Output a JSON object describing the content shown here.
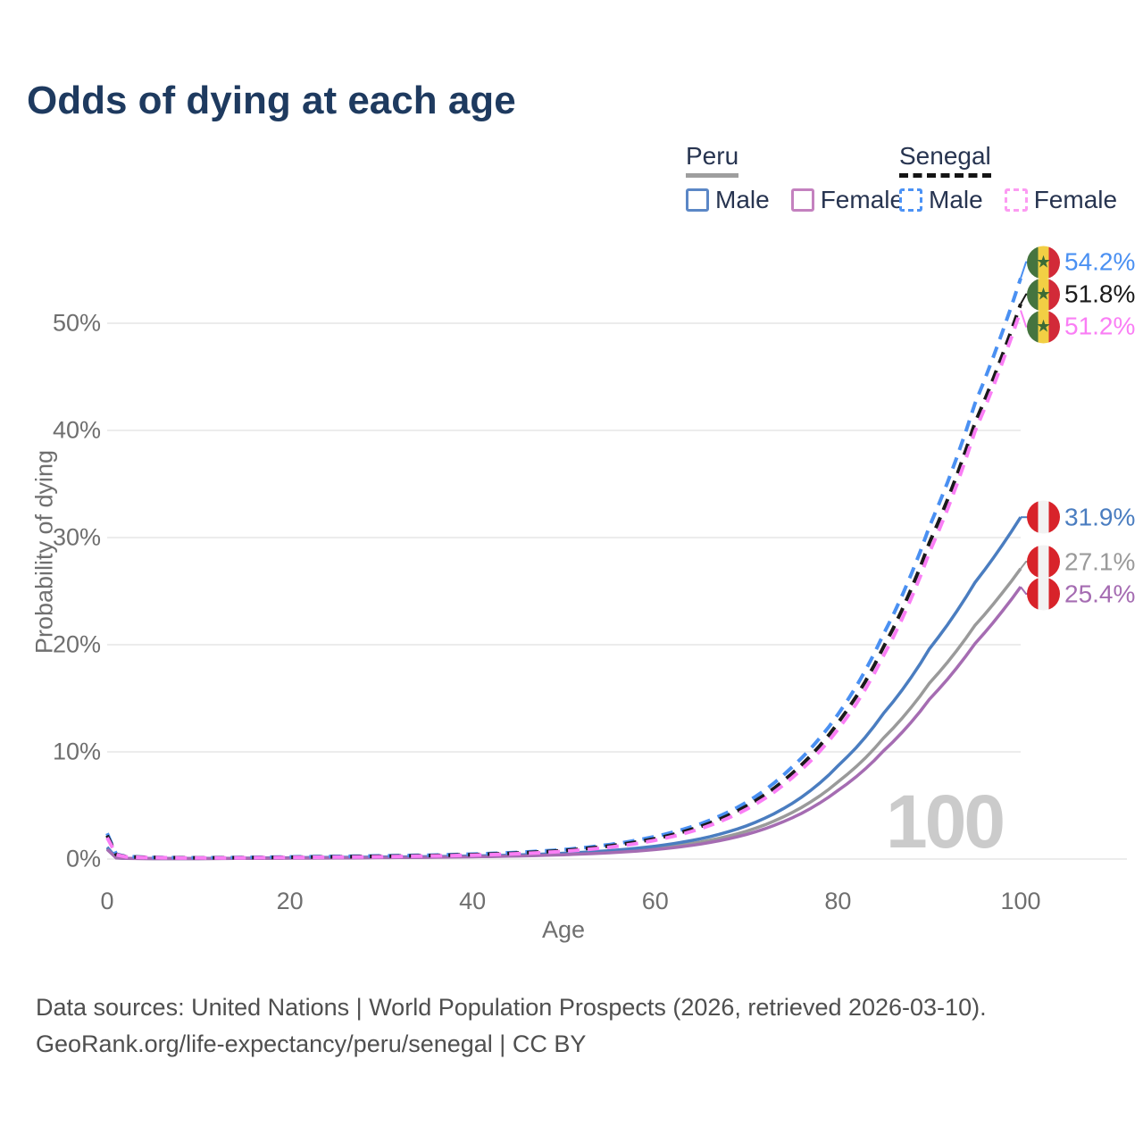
{
  "title": "Odds of dying at each age",
  "legend": {
    "groups": [
      {
        "label": "Peru",
        "line_style": "solid",
        "line_color": "#9e9e9e",
        "items": [
          {
            "label": "Male",
            "color": "#5b87c6",
            "style": "solid"
          },
          {
            "label": "Female",
            "color": "#c481bf",
            "style": "solid"
          }
        ]
      },
      {
        "label": "Senegal",
        "line_style": "dashed",
        "line_color": "#141414",
        "items": [
          {
            "label": "Male",
            "color": "#4b92f5",
            "style": "dashed"
          },
          {
            "label": "Female",
            "color": "#fc9bf2",
            "style": "dashed"
          }
        ]
      }
    ]
  },
  "watermark_age": "100",
  "footer": {
    "line1": "Data sources: United Nations | World Population Prospects (2026, retrieved 2026-03-10).",
    "line2": "GeoRank.org/life-expectancy/peru/senegal | CC BY"
  },
  "chart_data": {
    "type": "line",
    "title": "Odds of dying at each age",
    "xlabel": "Age",
    "ylabel": "Probability of dying",
    "xlim": [
      0,
      100
    ],
    "ylim_percent": [
      0,
      57
    ],
    "x_tick_values": [
      0,
      20,
      40,
      60,
      80,
      100
    ],
    "x_tick_labels": [
      "0",
      "20",
      "40",
      "60",
      "80",
      "100"
    ],
    "y_tick_values": [
      0,
      10,
      20,
      30,
      40,
      50
    ],
    "y_tick_labels": [
      "0%",
      "10%",
      "20%",
      "30%",
      "40%",
      "50%"
    ],
    "grid": "horizontal",
    "legend_position": "top-right",
    "ages": [
      0,
      1,
      2,
      5,
      10,
      15,
      20,
      25,
      30,
      35,
      40,
      45,
      50,
      55,
      60,
      65,
      70,
      75,
      80,
      85,
      90,
      95,
      100
    ],
    "series": [
      {
        "name": "Senegal Male",
        "country": "Senegal",
        "sex": "Male",
        "color": "#4a90f2",
        "dashed": true,
        "end_label": "54.2%",
        "flag": "senegal",
        "values": [
          2.4,
          0.45,
          0.25,
          0.15,
          0.12,
          0.15,
          0.2,
          0.25,
          0.3,
          0.36,
          0.46,
          0.62,
          0.88,
          1.35,
          2.1,
          3.3,
          5.3,
          8.6,
          13.5,
          21.0,
          31.0,
          42.5,
          54.2
        ]
      },
      {
        "name": "Senegal Total",
        "country": "Senegal",
        "sex": "Total",
        "color": "#1a1a1a",
        "dashed": true,
        "end_label": "51.8%",
        "flag": "senegal",
        "values": [
          2.2,
          0.42,
          0.23,
          0.14,
          0.11,
          0.13,
          0.17,
          0.21,
          0.26,
          0.32,
          0.41,
          0.56,
          0.8,
          1.22,
          1.9,
          3.05,
          4.95,
          8.0,
          12.7,
          19.8,
          29.5,
          40.7,
          51.8
        ]
      },
      {
        "name": "Senegal Female",
        "country": "Senegal",
        "sex": "Female",
        "color": "#fa7ef5",
        "dashed": true,
        "end_label": "51.2%",
        "flag": "senegal",
        "values": [
          2.0,
          0.4,
          0.21,
          0.13,
          0.1,
          0.12,
          0.15,
          0.18,
          0.22,
          0.28,
          0.36,
          0.5,
          0.72,
          1.1,
          1.75,
          2.85,
          4.65,
          7.6,
          12.1,
          19.0,
          28.6,
          39.9,
          51.2
        ]
      },
      {
        "name": "Peru Male",
        "country": "Peru",
        "sex": "Male",
        "color": "#4a7dc0",
        "dashed": false,
        "end_label": "31.9%",
        "flag": "peru",
        "values": [
          1.1,
          0.12,
          0.07,
          0.05,
          0.05,
          0.08,
          0.12,
          0.15,
          0.18,
          0.22,
          0.28,
          0.38,
          0.54,
          0.78,
          1.2,
          1.9,
          3.1,
          5.2,
          8.7,
          13.6,
          19.6,
          25.8,
          31.9
        ]
      },
      {
        "name": "Peru Total",
        "country": "Peru",
        "sex": "Total",
        "color": "#9a9a9a",
        "dashed": false,
        "end_label": "27.1%",
        "flag": "peru",
        "values": [
          1.0,
          0.11,
          0.06,
          0.045,
          0.045,
          0.07,
          0.1,
          0.12,
          0.15,
          0.19,
          0.24,
          0.32,
          0.46,
          0.67,
          1.0,
          1.6,
          2.6,
          4.35,
          7.2,
          11.3,
          16.4,
          21.8,
          27.1
        ]
      },
      {
        "name": "Peru Female",
        "country": "Peru",
        "sex": "Female",
        "color": "#a56cb2",
        "dashed": false,
        "end_label": "25.4%",
        "flag": "peru",
        "values": [
          0.9,
          0.1,
          0.055,
          0.04,
          0.04,
          0.06,
          0.08,
          0.1,
          0.13,
          0.16,
          0.21,
          0.28,
          0.4,
          0.58,
          0.88,
          1.4,
          2.3,
          3.85,
          6.4,
          10.1,
          14.9,
          20.1,
          25.4
        ]
      }
    ]
  }
}
